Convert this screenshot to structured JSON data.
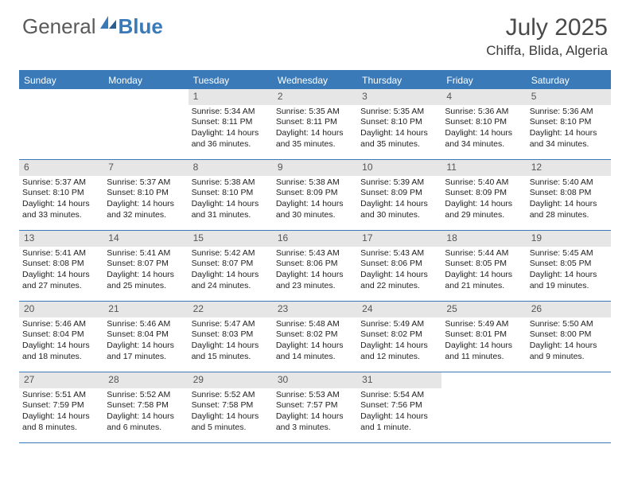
{
  "logo": {
    "general": "General",
    "blue": "Blue"
  },
  "title": "July 2025",
  "location": "Chiffa, Blida, Algeria",
  "weekdays": [
    "Sunday",
    "Monday",
    "Tuesday",
    "Wednesday",
    "Thursday",
    "Friday",
    "Saturday"
  ],
  "colors": {
    "header_bg": "#3a7ab8",
    "daynum_bg": "#e6e6e6",
    "border": "#3a7ab8"
  },
  "weeks": [
    [
      null,
      null,
      {
        "n": "1",
        "sr": "Sunrise: 5:34 AM",
        "ss": "Sunset: 8:11 PM",
        "dl": "Daylight: 14 hours and 36 minutes."
      },
      {
        "n": "2",
        "sr": "Sunrise: 5:35 AM",
        "ss": "Sunset: 8:11 PM",
        "dl": "Daylight: 14 hours and 35 minutes."
      },
      {
        "n": "3",
        "sr": "Sunrise: 5:35 AM",
        "ss": "Sunset: 8:10 PM",
        "dl": "Daylight: 14 hours and 35 minutes."
      },
      {
        "n": "4",
        "sr": "Sunrise: 5:36 AM",
        "ss": "Sunset: 8:10 PM",
        "dl": "Daylight: 14 hours and 34 minutes."
      },
      {
        "n": "5",
        "sr": "Sunrise: 5:36 AM",
        "ss": "Sunset: 8:10 PM",
        "dl": "Daylight: 14 hours and 34 minutes."
      }
    ],
    [
      {
        "n": "6",
        "sr": "Sunrise: 5:37 AM",
        "ss": "Sunset: 8:10 PM",
        "dl": "Daylight: 14 hours and 33 minutes."
      },
      {
        "n": "7",
        "sr": "Sunrise: 5:37 AM",
        "ss": "Sunset: 8:10 PM",
        "dl": "Daylight: 14 hours and 32 minutes."
      },
      {
        "n": "8",
        "sr": "Sunrise: 5:38 AM",
        "ss": "Sunset: 8:10 PM",
        "dl": "Daylight: 14 hours and 31 minutes."
      },
      {
        "n": "9",
        "sr": "Sunrise: 5:38 AM",
        "ss": "Sunset: 8:09 PM",
        "dl": "Daylight: 14 hours and 30 minutes."
      },
      {
        "n": "10",
        "sr": "Sunrise: 5:39 AM",
        "ss": "Sunset: 8:09 PM",
        "dl": "Daylight: 14 hours and 30 minutes."
      },
      {
        "n": "11",
        "sr": "Sunrise: 5:40 AM",
        "ss": "Sunset: 8:09 PM",
        "dl": "Daylight: 14 hours and 29 minutes."
      },
      {
        "n": "12",
        "sr": "Sunrise: 5:40 AM",
        "ss": "Sunset: 8:08 PM",
        "dl": "Daylight: 14 hours and 28 minutes."
      }
    ],
    [
      {
        "n": "13",
        "sr": "Sunrise: 5:41 AM",
        "ss": "Sunset: 8:08 PM",
        "dl": "Daylight: 14 hours and 27 minutes."
      },
      {
        "n": "14",
        "sr": "Sunrise: 5:41 AM",
        "ss": "Sunset: 8:07 PM",
        "dl": "Daylight: 14 hours and 25 minutes."
      },
      {
        "n": "15",
        "sr": "Sunrise: 5:42 AM",
        "ss": "Sunset: 8:07 PM",
        "dl": "Daylight: 14 hours and 24 minutes."
      },
      {
        "n": "16",
        "sr": "Sunrise: 5:43 AM",
        "ss": "Sunset: 8:06 PM",
        "dl": "Daylight: 14 hours and 23 minutes."
      },
      {
        "n": "17",
        "sr": "Sunrise: 5:43 AM",
        "ss": "Sunset: 8:06 PM",
        "dl": "Daylight: 14 hours and 22 minutes."
      },
      {
        "n": "18",
        "sr": "Sunrise: 5:44 AM",
        "ss": "Sunset: 8:05 PM",
        "dl": "Daylight: 14 hours and 21 minutes."
      },
      {
        "n": "19",
        "sr": "Sunrise: 5:45 AM",
        "ss": "Sunset: 8:05 PM",
        "dl": "Daylight: 14 hours and 19 minutes."
      }
    ],
    [
      {
        "n": "20",
        "sr": "Sunrise: 5:46 AM",
        "ss": "Sunset: 8:04 PM",
        "dl": "Daylight: 14 hours and 18 minutes."
      },
      {
        "n": "21",
        "sr": "Sunrise: 5:46 AM",
        "ss": "Sunset: 8:04 PM",
        "dl": "Daylight: 14 hours and 17 minutes."
      },
      {
        "n": "22",
        "sr": "Sunrise: 5:47 AM",
        "ss": "Sunset: 8:03 PM",
        "dl": "Daylight: 14 hours and 15 minutes."
      },
      {
        "n": "23",
        "sr": "Sunrise: 5:48 AM",
        "ss": "Sunset: 8:02 PM",
        "dl": "Daylight: 14 hours and 14 minutes."
      },
      {
        "n": "24",
        "sr": "Sunrise: 5:49 AM",
        "ss": "Sunset: 8:02 PM",
        "dl": "Daylight: 14 hours and 12 minutes."
      },
      {
        "n": "25",
        "sr": "Sunrise: 5:49 AM",
        "ss": "Sunset: 8:01 PM",
        "dl": "Daylight: 14 hours and 11 minutes."
      },
      {
        "n": "26",
        "sr": "Sunrise: 5:50 AM",
        "ss": "Sunset: 8:00 PM",
        "dl": "Daylight: 14 hours and 9 minutes."
      }
    ],
    [
      {
        "n": "27",
        "sr": "Sunrise: 5:51 AM",
        "ss": "Sunset: 7:59 PM",
        "dl": "Daylight: 14 hours and 8 minutes."
      },
      {
        "n": "28",
        "sr": "Sunrise: 5:52 AM",
        "ss": "Sunset: 7:58 PM",
        "dl": "Daylight: 14 hours and 6 minutes."
      },
      {
        "n": "29",
        "sr": "Sunrise: 5:52 AM",
        "ss": "Sunset: 7:58 PM",
        "dl": "Daylight: 14 hours and 5 minutes."
      },
      {
        "n": "30",
        "sr": "Sunrise: 5:53 AM",
        "ss": "Sunset: 7:57 PM",
        "dl": "Daylight: 14 hours and 3 minutes."
      },
      {
        "n": "31",
        "sr": "Sunrise: 5:54 AM",
        "ss": "Sunset: 7:56 PM",
        "dl": "Daylight: 14 hours and 1 minute."
      },
      null,
      null
    ]
  ]
}
